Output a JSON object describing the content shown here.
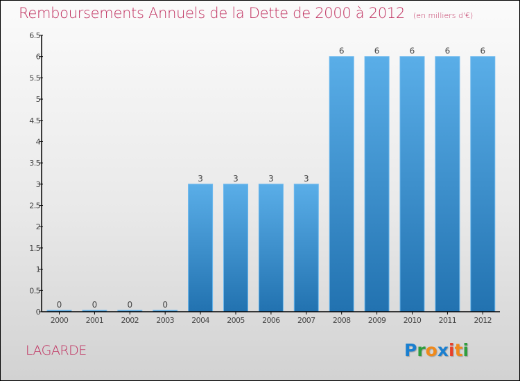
{
  "title": "Remboursements Annuels de la Dette de 2000 à 2012",
  "unit_note": "(en milliers d'€)",
  "commune": "LAGARDE",
  "logo": {
    "letters": [
      {
        "ch": "P",
        "color": "#1a7fd0"
      },
      {
        "ch": "r",
        "color": "#2e9e3e"
      },
      {
        "ch": "o",
        "color": "#f08a1c"
      },
      {
        "ch": "x",
        "color": "#1a7fd0"
      },
      {
        "ch": "i",
        "color": "#e8402a"
      },
      {
        "ch": "t",
        "color": "#f08a1c"
      },
      {
        "ch": "i",
        "color": "#2e9e3e"
      }
    ]
  },
  "colors": {
    "title": "#c0305f",
    "bar_top": "#5aaee8",
    "bar_bottom": "#2272b0",
    "axis": "#000000"
  },
  "chart_data": {
    "type": "bar",
    "title": "Remboursements Annuels de la Dette de 2000 à 2012",
    "subtitle": "(en milliers d'€)",
    "xlabel": "",
    "ylabel": "",
    "categories": [
      "2000",
      "2001",
      "2002",
      "2003",
      "2004",
      "2005",
      "2006",
      "2007",
      "2008",
      "2009",
      "2010",
      "2011",
      "2012"
    ],
    "values": [
      0,
      0,
      0,
      0,
      3,
      3,
      3,
      3,
      6,
      6,
      6,
      6,
      6
    ],
    "value_labels": [
      "0",
      "0",
      "0",
      "0",
      "3",
      "3",
      "3",
      "3",
      "6",
      "6",
      "6",
      "6",
      "6"
    ],
    "ylim": [
      0,
      6.5
    ],
    "yticks": [
      0,
      0.5,
      1,
      1.5,
      2,
      2.5,
      3,
      3.5,
      4,
      4.5,
      5,
      5.5,
      6,
      6.5
    ],
    "ytick_labels": [
      "0",
      "0.5",
      "1",
      "1.5",
      "2",
      "2.5",
      "3",
      "3.5",
      "4",
      "4.5",
      "5",
      "5.5",
      "6",
      "6.5"
    ],
    "grid": false,
    "legend": "none"
  }
}
